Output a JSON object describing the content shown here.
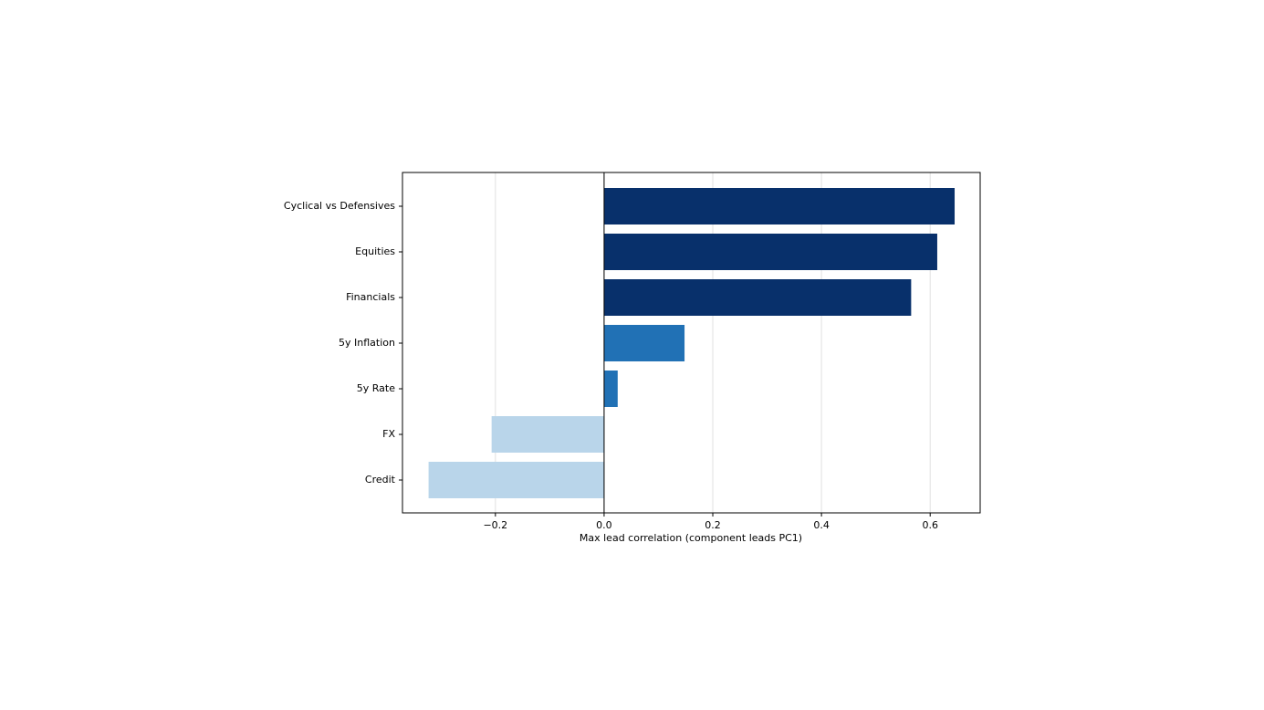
{
  "chart_data": {
    "type": "barh",
    "xlabel": "Max lead correlation (component leads PC1)",
    "categories": [
      "Cyclical vs Defensives",
      "Equities",
      "Financials",
      "5y Inflation",
      "5y Rate",
      "FX",
      "Credit"
    ],
    "values": [
      0.645,
      0.613,
      0.565,
      0.148,
      0.025,
      -0.207,
      -0.323
    ],
    "colors": [
      "#08306b",
      "#08306b",
      "#08306b",
      "#2171b5",
      "#2171b5",
      "#b9d5ea",
      "#b9d5ea"
    ],
    "xlim": [
      -0.371,
      0.692
    ],
    "xticks": [
      {
        "value": -0.2,
        "label": "−0.2"
      },
      {
        "value": 0,
        "label": "0.0"
      },
      0.2,
      0.4,
      0.6
    ],
    "grid": true
  }
}
